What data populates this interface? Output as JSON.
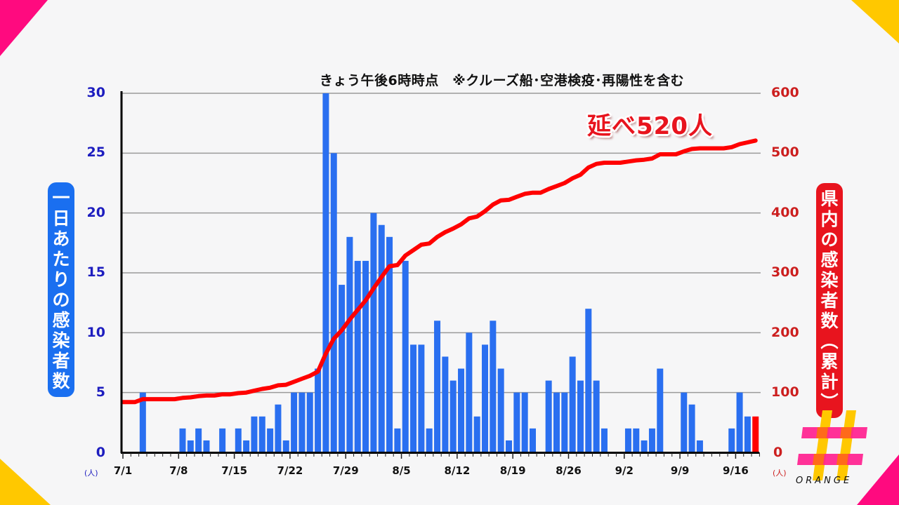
{
  "header": {
    "subtitle": "きょう午後6時時点　※クルーズ船･空港検疫･再陽性を含む",
    "total_badge": "延べ520人"
  },
  "axes": {
    "left_label": "一日あたりの感染者数",
    "right_label": "県内の感染者数(累計)",
    "left_unit": "(人)",
    "right_unit": "(人)",
    "left_ticks": [
      "30",
      "25",
      "20",
      "15",
      "10",
      "5",
      "0"
    ],
    "right_ticks": [
      "600",
      "500",
      "400",
      "300",
      "200",
      "100",
      "0"
    ],
    "x_ticks": [
      "7/1",
      "7/8",
      "7/15",
      "7/22",
      "7/29",
      "8/5",
      "8/12",
      "8/19",
      "8/26",
      "9/2",
      "9/9",
      "9/16"
    ]
  },
  "branding": {
    "logo_text": "ORANGE",
    "colors": {
      "pink": "#ff0a7f",
      "yellow": "#ffc800",
      "orange": "#ff6a1a"
    }
  },
  "colors": {
    "bar": "#2a6ff0",
    "bar_latest": "#ff0000",
    "line": "#ff0000",
    "left_axis_text": "#1d1dbf",
    "right_axis_text": "#cc1f1f",
    "background": "#f6f6f7"
  },
  "chart_data": {
    "type": "bar+line",
    "title": "きょう午後6時時点　※クルーズ船･空港検疫･再陽性を含む",
    "annotation": "延べ520人",
    "xlabel": "",
    "ylabel_left": "一日あたりの感染者数 (人)",
    "ylabel_right": "県内の感染者数(累計) (人)",
    "ylim_left": [
      0,
      30
    ],
    "ylim_right": [
      0,
      600
    ],
    "grid": true,
    "start_date": "7/1",
    "end_date": "9/18",
    "x_tick_labels": [
      "7/1",
      "7/8",
      "7/15",
      "7/22",
      "7/29",
      "8/5",
      "8/12",
      "8/19",
      "8/26",
      "9/2",
      "9/9",
      "9/16"
    ],
    "series": [
      {
        "name": "一日あたりの感染者数",
        "type": "bar",
        "axis": "left",
        "values": [
          0,
          0,
          5,
          0,
          0,
          0,
          0,
          2,
          1,
          2,
          1,
          0,
          2,
          0,
          2,
          1,
          3,
          3,
          2,
          4,
          1,
          5,
          5,
          5,
          7,
          30,
          25,
          14,
          18,
          16,
          16,
          20,
          19,
          18,
          2,
          16,
          9,
          9,
          2,
          11,
          8,
          6,
          7,
          10,
          3,
          9,
          11,
          7,
          1,
          5,
          5,
          2,
          0,
          6,
          5,
          5,
          8,
          6,
          12,
          6,
          2,
          0,
          0,
          2,
          2,
          1,
          2,
          7,
          0,
          0,
          5,
          4,
          1,
          0,
          0,
          0,
          2,
          5,
          3,
          3
        ]
      },
      {
        "name": "県内の感染者数(累計)",
        "type": "line",
        "axis": "right",
        "start_value": 84,
        "final_value": 520
      }
    ]
  }
}
